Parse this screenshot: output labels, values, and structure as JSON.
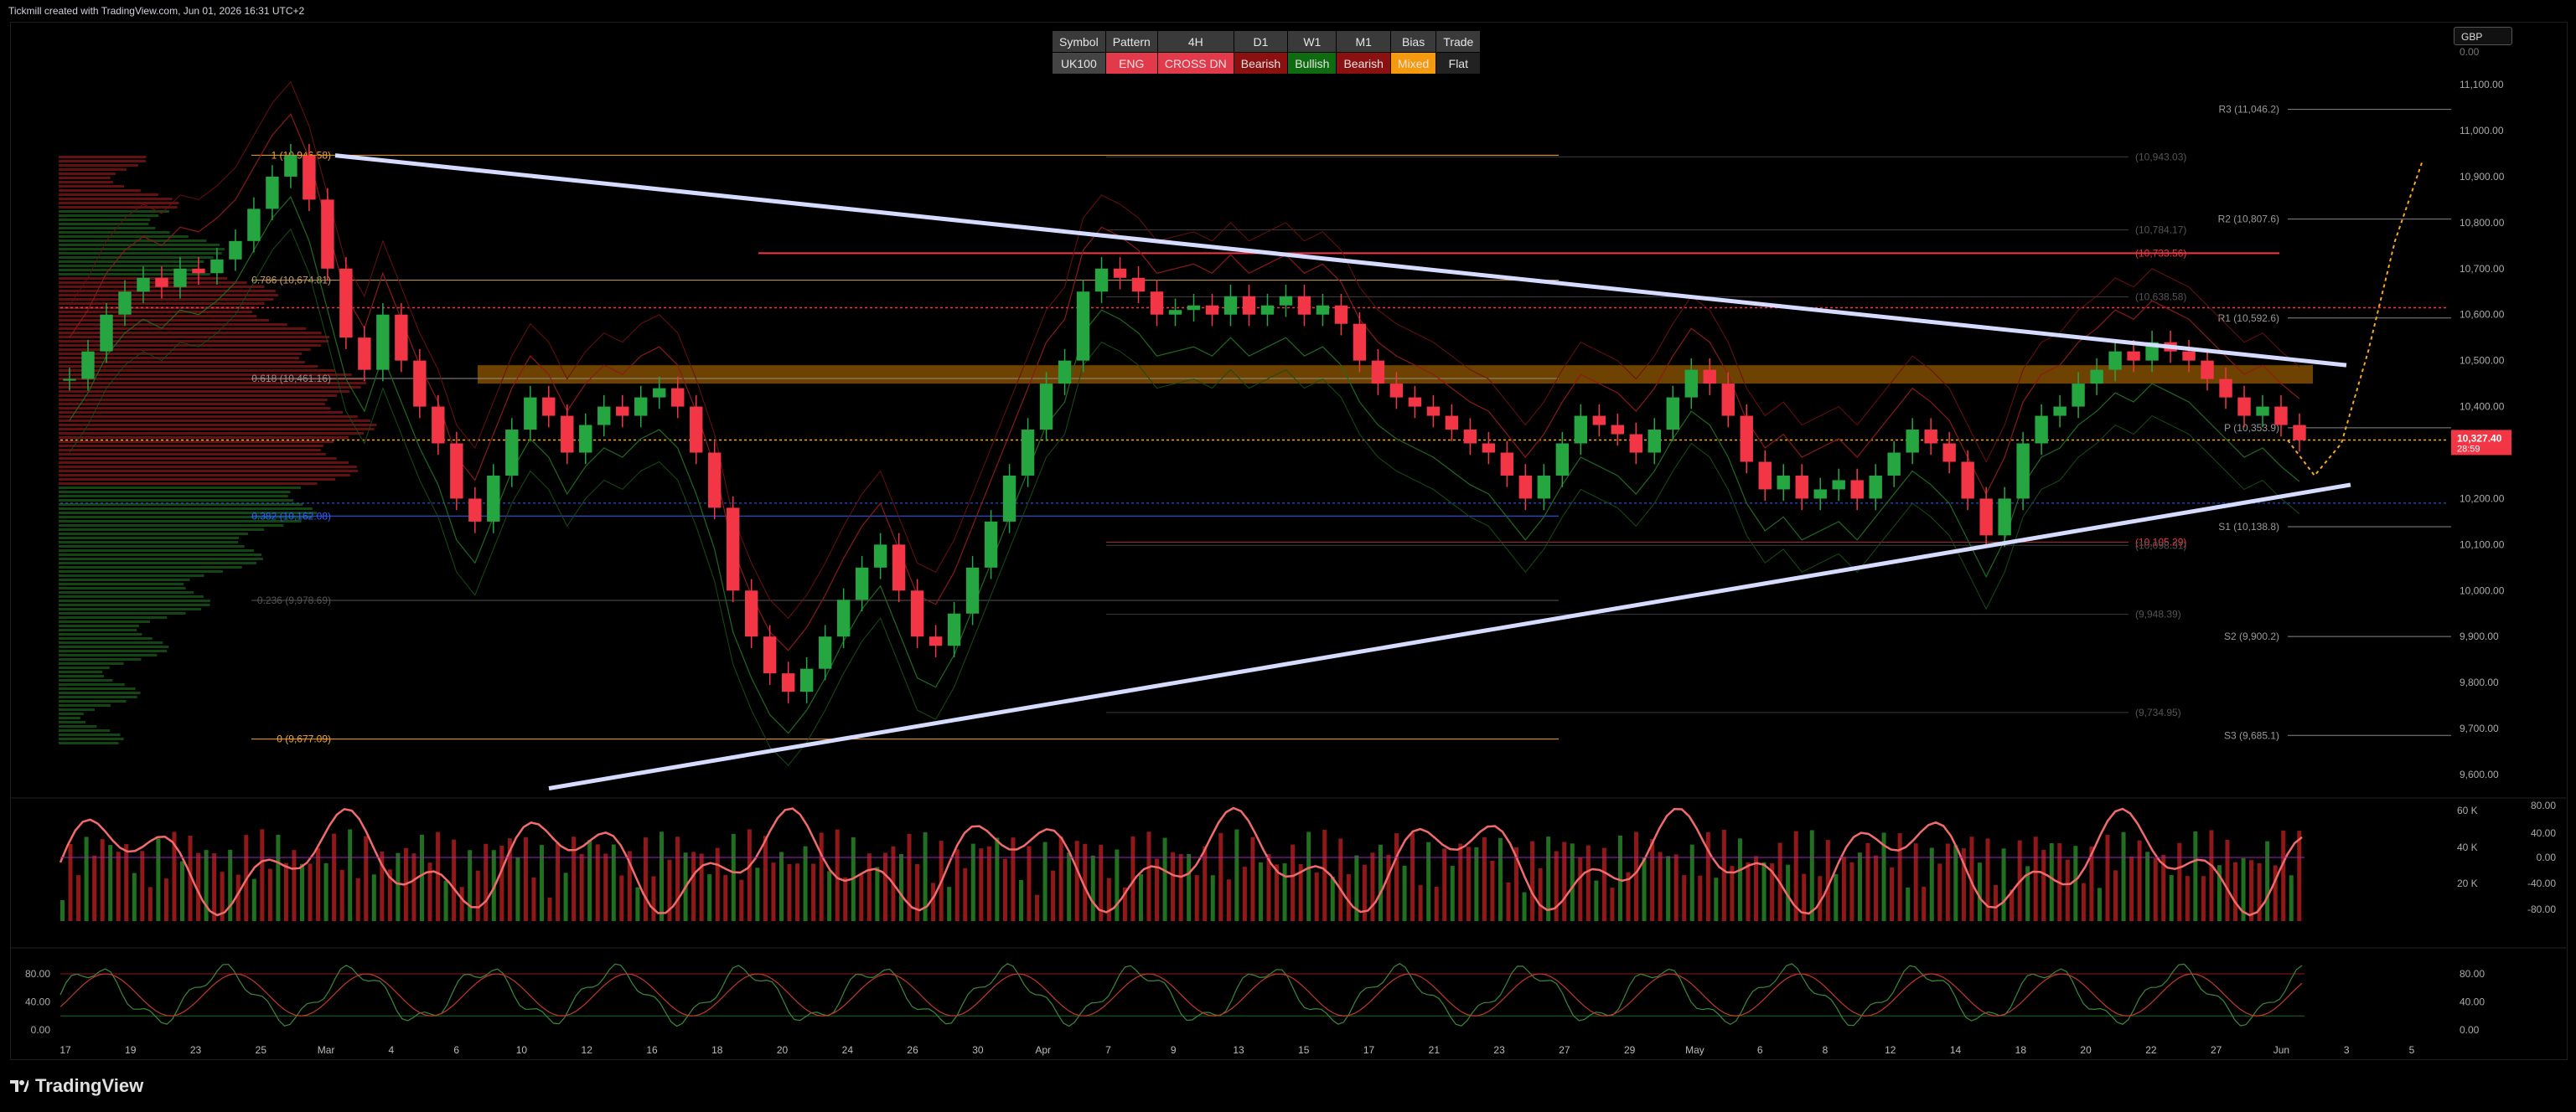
{
  "header": {
    "text": "Tickmill created with TradingView.com, Jun 01, 2026 16:31 UTC+2"
  },
  "footer": {
    "brand": "TradingView"
  },
  "currency_button": "GBP",
  "bias_table": {
    "headers": [
      "Symbol",
      "Pattern",
      "4H",
      "D1",
      "W1",
      "M1",
      "Bias",
      "Trade"
    ],
    "values": [
      "UK100",
      "ENG",
      "CROSS DN",
      "Bearish",
      "Bullish",
      "Bearish",
      "Mixed",
      "Flat"
    ],
    "value_colors": [
      "#444444",
      "#e23a4a",
      "#e23a4a",
      "#8b1010",
      "#0f6b0f",
      "#8b1010",
      "#f59a0c",
      "#222222"
    ]
  },
  "price_axis": {
    "top_label": "0.00",
    "ticks": [
      "11,100.00",
      "11,000.00",
      "10,900.00",
      "10,800.00",
      "10,700.00",
      "10,600.00",
      "10,500.00",
      "10,400.00",
      "10,200.00",
      "10,100.00",
      "10,000.00",
      "9,900.00",
      "9,800.00",
      "9,700.00",
      "9,600.00"
    ],
    "tick_values": [
      11100,
      11000,
      10900,
      10800,
      10700,
      10600,
      10500,
      10400,
      10200,
      10100,
      10000,
      9900,
      9800,
      9700,
      9600
    ],
    "current_price": "10,327.40",
    "countdown": "28:59",
    "current_color": "#f23645"
  },
  "date_axis": {
    "labels": [
      "17",
      "19",
      "23",
      "25",
      "Mar",
      "4",
      "6",
      "10",
      "12",
      "16",
      "18",
      "20",
      "24",
      "26",
      "30",
      "Apr",
      "7",
      "9",
      "13",
      "15",
      "17",
      "21",
      "23",
      "27",
      "29",
      "May",
      "6",
      "8",
      "12",
      "14",
      "18",
      "20",
      "22",
      "27",
      "Jun",
      "3",
      "5"
    ]
  },
  "pivots": [
    {
      "label": "R3 (11,046.2)",
      "value": 11046.2
    },
    {
      "label": "R2 (10,807.6)",
      "value": 10807.6
    },
    {
      "label": "R1 (10,592.6)",
      "value": 10592.6
    },
    {
      "label": "P (10,353.9)",
      "value": 10353.9
    },
    {
      "label": "S1 (10,138.8)",
      "value": 10138.8
    },
    {
      "label": "S2 (9,900.2)",
      "value": 9900.2
    },
    {
      "label": "S3 (9,685.1)",
      "value": 9685.1
    }
  ],
  "fib_levels": [
    {
      "label": "1 (10,946.58)",
      "value": 10946.58,
      "color": "#f5a623"
    },
    {
      "label": "0.786 (10,674.81)",
      "value": 10674.81,
      "color": "#c8a060"
    },
    {
      "label": "0.618 (10,461.16)",
      "value": 10461.16,
      "color": "#909090"
    },
    {
      "label": "0.382 (10,162.08)",
      "value": 10162.08,
      "color": "#2962ff"
    },
    {
      "label": "0.236 (9,978.69)",
      "value": 9978.69,
      "color": "#555555"
    },
    {
      "label": "0 (9,677.09)",
      "value": 9677.09,
      "color": "#f5a623"
    }
  ],
  "level_labels": [
    {
      "label": "(10,943.03)",
      "value": 10943.03,
      "color": "#555555"
    },
    {
      "label": "(10,784.17)",
      "value": 10784.17,
      "color": "#555555"
    },
    {
      "label": "(10,733.56)",
      "value": 10733.56,
      "color": "#f23645"
    },
    {
      "label": "(10,638.58)",
      "value": 10638.58,
      "color": "#555555"
    },
    {
      "label": "(10,105.29)",
      "value": 10105.29,
      "color": "#f23645"
    },
    {
      "label": "(10,098.31)",
      "value": 10098.31,
      "color": "#555555"
    },
    {
      "label": "(9,948.39)",
      "value": 9948.39,
      "color": "#555555"
    },
    {
      "label": "(9,734.95)",
      "value": 9734.95,
      "color": "#555555"
    }
  ],
  "volume_pane": {
    "volume_ticks": [
      "60 K",
      "40 K",
      "20 K"
    ],
    "volume_tick_values": [
      60000,
      40000,
      20000
    ],
    "osc_ticks": [
      "80.00",
      "40.00",
      "0.00",
      "-40.00",
      "-80.00"
    ],
    "osc_tick_values": [
      80,
      40,
      0,
      -40,
      -80
    ]
  },
  "stoch_pane": {
    "ticks": [
      "80.00",
      "40.00",
      "0.00"
    ],
    "tick_values": [
      80,
      40,
      0
    ]
  },
  "chart_data": {
    "type": "line",
    "title": "",
    "symbol": "UK100",
    "ylabel": "",
    "ylim": [
      9545,
      11160
    ],
    "closes": [
      10460,
      10520,
      10600,
      10650,
      10680,
      10660,
      10700,
      10690,
      10720,
      10760,
      10830,
      10900,
      10946,
      10850,
      10700,
      10550,
      10480,
      10600,
      10500,
      10400,
      10320,
      10200,
      10150,
      10250,
      10350,
      10420,
      10380,
      10300,
      10360,
      10400,
      10380,
      10420,
      10440,
      10400,
      10300,
      10180,
      10000,
      9900,
      9820,
      9780,
      9830,
      9900,
      9980,
      10050,
      10100,
      10000,
      9900,
      9880,
      9950,
      10050,
      10150,
      10250,
      10350,
      10450,
      10500,
      10650,
      10700,
      10680,
      10650,
      10600,
      10610,
      10620,
      10600,
      10640,
      10600,
      10620,
      10640,
      10600,
      10620,
      10580,
      10500,
      10450,
      10420,
      10400,
      10380,
      10350,
      10320,
      10300,
      10250,
      10200,
      10250,
      10320,
      10380,
      10360,
      10340,
      10300,
      10350,
      10420,
      10480,
      10450,
      10380,
      10280,
      10220,
      10250,
      10200,
      10220,
      10240,
      10200,
      10250,
      10300,
      10350,
      10320,
      10280,
      10200,
      10120,
      10200,
      10320,
      10380,
      10400,
      10450,
      10480,
      10520,
      10500,
      10540,
      10520,
      10500,
      10460,
      10420,
      10380,
      10400,
      10360,
      10327
    ],
    "projection": [
      10327,
      10250,
      10320,
      10520,
      10760,
      10930
    ],
    "resistance_trendline": {
      "from": 10946,
      "to": 10490
    },
    "support_trendline": {
      "from": 9570,
      "to": 10230
    },
    "supply_zone": [
      10450,
      10490
    ]
  }
}
